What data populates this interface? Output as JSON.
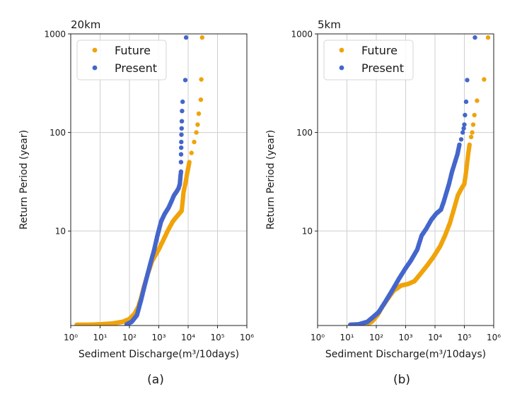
{
  "colors": {
    "future": "#F0A30A",
    "present": "#4466CC",
    "grid": "#cfcfcf",
    "axis": "#222222"
  },
  "chart_data": [
    {
      "type": "scatter",
      "title": "20km",
      "xlabel": "Sediment Discharge(m³/10days)",
      "ylabel": "Return Period (year)",
      "xscale": "log",
      "yscale": "log",
      "xlim": [
        1,
        1000000
      ],
      "ylim": [
        1.1,
        1000
      ],
      "xticks": [
        1,
        10,
        100,
        1000,
        10000,
        100000,
        1000000
      ],
      "xticklabels": [
        "10⁰",
        "10¹",
        "10²",
        "10³",
        "10⁴",
        "10⁵",
        "10⁶"
      ],
      "yticks": [
        10,
        100,
        1000
      ],
      "yticklabels": [
        "10",
        "100",
        "1000"
      ],
      "grid": true,
      "legend": "top-left",
      "caption": "(a)",
      "series": [
        {
          "name": "Future",
          "color": "#F0A30A",
          "curve": [
            [
              1.6,
              1.12
            ],
            [
              4,
              1.12
            ],
            [
              10,
              1.13
            ],
            [
              25,
              1.15
            ],
            [
              60,
              1.2
            ],
            [
              100,
              1.28
            ],
            [
              150,
              1.45
            ],
            [
              200,
              1.7
            ],
            [
              250,
              2.1
            ],
            [
              300,
              2.6
            ],
            [
              400,
              3.5
            ],
            [
              600,
              5
            ],
            [
              1000,
              6.5
            ],
            [
              1400,
              8
            ],
            [
              2000,
              10
            ],
            [
              3000,
              12.5
            ],
            [
              4500,
              14.5
            ],
            [
              6000,
              16
            ],
            [
              6500,
              20
            ],
            [
              7000,
              25
            ],
            [
              8000,
              30
            ],
            [
              9500,
              40
            ],
            [
              11000,
              50
            ]
          ],
          "extra": [
            [
              13000,
              62
            ],
            [
              16000,
              80
            ],
            [
              19000,
              100
            ],
            [
              21000,
              120
            ],
            [
              23000,
              155
            ],
            [
              27000,
              215
            ],
            [
              28000,
              345
            ],
            [
              30000,
              920
            ]
          ]
        },
        {
          "name": "Present",
          "color": "#4466CC",
          "curve": [
            [
              80,
              1.13
            ],
            [
              120,
              1.2
            ],
            [
              180,
              1.4
            ],
            [
              250,
              2.0
            ],
            [
              350,
              3.0
            ],
            [
              500,
              4.5
            ],
            [
              700,
              6.5
            ],
            [
              900,
              9
            ],
            [
              1200,
              12.5
            ],
            [
              1600,
              15
            ],
            [
              2100,
              17
            ],
            [
              2700,
              20
            ],
            [
              3300,
              23
            ],
            [
              4000,
              25
            ],
            [
              4700,
              27
            ],
            [
              5200,
              30
            ],
            [
              5500,
              36
            ],
            [
              5700,
              40
            ]
          ],
          "extra": [
            [
              5700,
              50
            ],
            [
              5750,
              60
            ],
            [
              5800,
              70
            ],
            [
              5850,
              80
            ],
            [
              5900,
              95
            ],
            [
              6000,
              110
            ],
            [
              6100,
              130
            ],
            [
              6200,
              165
            ],
            [
              6500,
              205
            ],
            [
              8000,
              340
            ],
            [
              8500,
              920
            ]
          ]
        }
      ]
    },
    {
      "type": "scatter",
      "title": "5km",
      "xlabel": "Sediment Discharge(m³/10days)",
      "ylabel": "Return Period (year)",
      "xscale": "log",
      "yscale": "log",
      "xlim": [
        1,
        1000000
      ],
      "ylim": [
        1.1,
        1000
      ],
      "xticks": [
        1,
        10,
        100,
        1000,
        10000,
        100000,
        1000000
      ],
      "xticklabels": [
        "10⁰",
        "10¹",
        "10²",
        "10³",
        "10⁴",
        "10⁵",
        "10⁶"
      ],
      "yticks": [
        10,
        100,
        1000
      ],
      "yticklabels": [
        "10",
        "100",
        "1000"
      ],
      "grid": true,
      "legend": "top-left",
      "caption": "(b)",
      "series": [
        {
          "name": "Future",
          "color": "#F0A30A",
          "curve": [
            [
              40,
              1.12
            ],
            [
              70,
              1.2
            ],
            [
              110,
              1.4
            ],
            [
              160,
              1.7
            ],
            [
              230,
              2.0
            ],
            [
              400,
              2.5
            ],
            [
              700,
              2.8
            ],
            [
              1200,
              2.9
            ],
            [
              2000,
              3.1
            ],
            [
              3500,
              3.8
            ],
            [
              5500,
              4.5
            ],
            [
              9000,
              5.5
            ],
            [
              15000,
              7
            ],
            [
              22000,
              9
            ],
            [
              32000,
              12
            ],
            [
              45000,
              17
            ],
            [
              60000,
              23
            ],
            [
              80000,
              27
            ],
            [
              100000,
              30
            ],
            [
              115000,
              40
            ],
            [
              125000,
              50
            ],
            [
              135000,
              60
            ],
            [
              150000,
              75
            ]
          ],
          "extra": [
            [
              170000,
              90
            ],
            [
              185000,
              100
            ],
            [
              200000,
              120
            ],
            [
              220000,
              150
            ],
            [
              270000,
              210
            ],
            [
              470000,
              345
            ],
            [
              640000,
              920
            ]
          ]
        },
        {
          "name": "Present",
          "color": "#4466CC",
          "curve": [
            [
              13,
              1.12
            ],
            [
              25,
              1.13
            ],
            [
              50,
              1.2
            ],
            [
              80,
              1.35
            ],
            [
              120,
              1.5
            ],
            [
              200,
              1.9
            ],
            [
              350,
              2.5
            ],
            [
              600,
              3.3
            ],
            [
              1000,
              4.2
            ],
            [
              1500,
              5
            ],
            [
              2500,
              6.5
            ],
            [
              3500,
              9
            ],
            [
              5000,
              10.5
            ],
            [
              7500,
              13
            ],
            [
              11000,
              15
            ],
            [
              16000,
              16.5
            ],
            [
              20000,
              20
            ],
            [
              25000,
              25
            ],
            [
              30000,
              30
            ],
            [
              38000,
              40
            ],
            [
              48000,
              50
            ],
            [
              58000,
              60
            ],
            [
              68000,
              75
            ]
          ],
          "extra": [
            [
              78000,
              85
            ],
            [
              88000,
              100
            ],
            [
              95000,
              110
            ],
            [
              100000,
              120
            ],
            [
              105000,
              150
            ],
            [
              115000,
              205
            ],
            [
              125000,
              340
            ],
            [
              230000,
              920
            ]
          ]
        }
      ]
    }
  ]
}
